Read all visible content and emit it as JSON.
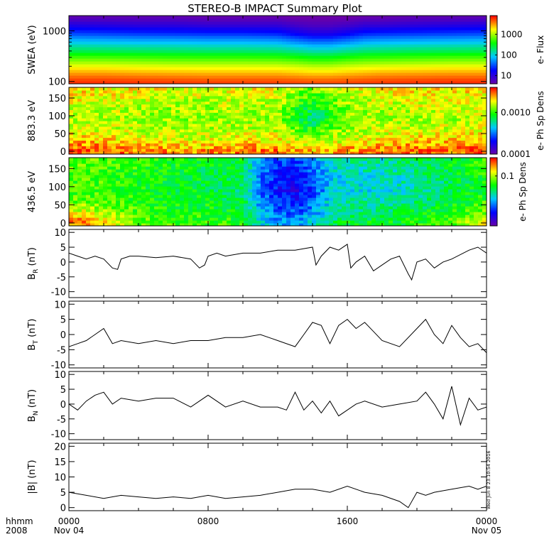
{
  "title": "STEREO-B IMPACT Summary Plot",
  "stamp": "Wed Jun  8 23:10:54 2016",
  "time_axis": {
    "label_line1": "hhmm",
    "label_line2": "2008",
    "ticks": [
      {
        "hour": 0,
        "line1": "0000",
        "line2": "Nov 04"
      },
      {
        "hour": 8,
        "line1": "0800",
        "line2": ""
      },
      {
        "hour": 16,
        "line1": "1600",
        "line2": ""
      },
      {
        "hour": 24,
        "line1": "0000",
        "line2": "Nov 05"
      }
    ]
  },
  "chart_data": [
    {
      "type": "heatmap",
      "ylabel": "SWEA (eV)",
      "yscale": "log",
      "ylim": [
        90,
        2000
      ],
      "yticks": [
        {
          "v": 100,
          "label": "100"
        },
        {
          "v": 1000,
          "label": "1000"
        }
      ],
      "colorbar": {
        "label": "e- Flux",
        "scale": "log",
        "range": [
          4,
          8000
        ],
        "ticks": [
          {
            "v": 10,
            "label": "10"
          },
          {
            "v": 100,
            "label": "100"
          },
          {
            "v": 1000,
            "label": "1000"
          }
        ]
      },
      "colorscale": [
        "#6a00a8",
        "#0000ff",
        "#00c8ff",
        "#00ff00",
        "#ffff00",
        "#ff0000"
      ],
      "x_hours": [
        0,
        2,
        4,
        6,
        8,
        10,
        12,
        13,
        14,
        15,
        16,
        17,
        18,
        20,
        22,
        24
      ],
      "y_levels": [
        100,
        150,
        250,
        400,
        600,
        900,
        1300,
        1800
      ],
      "z": [
        [
          6000,
          6000,
          5800,
          5600,
          5400,
          5400,
          5400,
          5200,
          5000,
          5000,
          5200,
          5400,
          5600,
          5800,
          6000,
          6000
        ],
        [
          3000,
          3000,
          2800,
          2700,
          2600,
          2600,
          2600,
          2400,
          2200,
          2200,
          2400,
          2600,
          2800,
          2900,
          3000,
          3000
        ],
        [
          900,
          900,
          850,
          800,
          800,
          800,
          780,
          700,
          600,
          600,
          700,
          780,
          800,
          850,
          900,
          900
        ],
        [
          250,
          240,
          230,
          220,
          210,
          210,
          200,
          170,
          140,
          140,
          170,
          200,
          210,
          230,
          240,
          250
        ],
        [
          90,
          85,
          80,
          80,
          75,
          75,
          70,
          55,
          45,
          45,
          55,
          70,
          75,
          80,
          85,
          90
        ],
        [
          30,
          28,
          26,
          25,
          24,
          24,
          22,
          16,
          12,
          12,
          16,
          22,
          24,
          26,
          28,
          30
        ],
        [
          12,
          11,
          10,
          10,
          9,
          9,
          9,
          7,
          6,
          6,
          7,
          9,
          9,
          10,
          11,
          12
        ],
        [
          5,
          5,
          5,
          5,
          4.5,
          4.5,
          4.5,
          4,
          4,
          4,
          4,
          4.5,
          4.5,
          5,
          5,
          5
        ]
      ]
    },
    {
      "type": "heatmap",
      "ylabel": "883.3 eV",
      "yscale": "linear",
      "ylim": [
        -8,
        180
      ],
      "yticks": [
        {
          "v": 0,
          "label": "0"
        },
        {
          "v": 50,
          "label": "50"
        },
        {
          "v": 100,
          "label": "100"
        },
        {
          "v": 150,
          "label": "150"
        }
      ],
      "colorbar": {
        "label": "e- Ph Sp Dens",
        "scale": "log",
        "range": [
          0.0001,
          0.004
        ],
        "ticks": [
          {
            "v": 0.0001,
            "label": "0.0001"
          },
          {
            "v": 0.001,
            "label": "0.0010"
          }
        ]
      },
      "colorscale": [
        "#6a00a8",
        "#0000ff",
        "#00c8ff",
        "#00ff00",
        "#ffff00",
        "#ff0000"
      ],
      "x_hours": [
        0,
        2,
        4,
        6,
        8,
        10,
        12,
        13,
        14,
        15,
        16,
        18,
        20,
        22,
        24
      ],
      "y_levels": [
        5,
        30,
        60,
        90,
        120,
        150,
        175
      ],
      "z": [
        [
          0.0032,
          0.003,
          0.0028,
          0.0026,
          0.0026,
          0.0028,
          0.0028,
          0.0024,
          0.0022,
          0.0024,
          0.0026,
          0.0028,
          0.003,
          0.003,
          0.0032
        ],
        [
          0.0024,
          0.0022,
          0.002,
          0.0018,
          0.0018,
          0.002,
          0.002,
          0.0016,
          0.0014,
          0.0016,
          0.0018,
          0.002,
          0.0022,
          0.0022,
          0.0024
        ],
        [
          0.0018,
          0.0017,
          0.0016,
          0.0015,
          0.0015,
          0.0016,
          0.0016,
          0.0012,
          0.001,
          0.0012,
          0.0015,
          0.0016,
          0.0017,
          0.0017,
          0.0018
        ],
        [
          0.0016,
          0.0015,
          0.0015,
          0.0014,
          0.0014,
          0.0015,
          0.0014,
          0.0009,
          0.0006,
          0.0009,
          0.0013,
          0.0015,
          0.0015,
          0.0015,
          0.0016
        ],
        [
          0.0017,
          0.0016,
          0.0015,
          0.0014,
          0.0014,
          0.0015,
          0.0014,
          0.001,
          0.0008,
          0.001,
          0.0013,
          0.0015,
          0.0016,
          0.0016,
          0.0017
        ],
        [
          0.0019,
          0.0018,
          0.0017,
          0.0016,
          0.0016,
          0.0017,
          0.0016,
          0.0012,
          0.001,
          0.0012,
          0.0015,
          0.0017,
          0.0018,
          0.0018,
          0.0019
        ],
        [
          0.0021,
          0.002,
          0.0019,
          0.0018,
          0.0018,
          0.0019,
          0.0018,
          0.0014,
          0.0012,
          0.0014,
          0.0017,
          0.0019,
          0.002,
          0.002,
          0.0021
        ]
      ]
    },
    {
      "type": "heatmap",
      "ylabel": "436.5 eV",
      "yscale": "linear",
      "ylim": [
        -8,
        180
      ],
      "yticks": [
        {
          "v": 0,
          "label": "0"
        },
        {
          "v": 50,
          "label": "50"
        },
        {
          "v": 100,
          "label": "100"
        },
        {
          "v": 150,
          "label": "150"
        }
      ],
      "colorbar": {
        "label": "e- Ph Sp Dens",
        "scale": "log",
        "range": [
          0.005,
          0.3
        ],
        "ticks": [
          {
            "v": 0.1,
            "label": "0.1"
          }
        ]
      },
      "colorscale": [
        "#6a00a8",
        "#0000ff",
        "#00c8ff",
        "#00ff00",
        "#ffff00",
        "#ff0000"
      ],
      "x_hours": [
        0,
        1,
        2,
        4,
        6,
        8,
        10,
        11,
        12,
        13,
        14,
        15,
        16,
        18,
        20,
        22,
        23,
        24
      ],
      "y_levels": [
        5,
        30,
        60,
        90,
        120,
        150,
        175
      ],
      "z": [
        [
          0.2,
          0.22,
          0.15,
          0.08,
          0.07,
          0.07,
          0.06,
          0.03,
          0.02,
          0.02,
          0.03,
          0.04,
          0.05,
          0.05,
          0.06,
          0.07,
          0.1,
          0.15
        ],
        [
          0.12,
          0.12,
          0.1,
          0.07,
          0.06,
          0.06,
          0.05,
          0.025,
          0.017,
          0.016,
          0.02,
          0.03,
          0.04,
          0.04,
          0.05,
          0.06,
          0.07,
          0.09
        ],
        [
          0.08,
          0.08,
          0.075,
          0.065,
          0.055,
          0.055,
          0.045,
          0.02,
          0.014,
          0.012,
          0.018,
          0.03,
          0.035,
          0.035,
          0.04,
          0.05,
          0.06,
          0.07
        ],
        [
          0.07,
          0.07,
          0.07,
          0.06,
          0.05,
          0.05,
          0.04,
          0.018,
          0.012,
          0.009,
          0.015,
          0.025,
          0.03,
          0.03,
          0.035,
          0.045,
          0.05,
          0.06
        ],
        [
          0.07,
          0.07,
          0.07,
          0.06,
          0.05,
          0.05,
          0.04,
          0.018,
          0.012,
          0.01,
          0.016,
          0.025,
          0.03,
          0.03,
          0.035,
          0.045,
          0.05,
          0.06
        ],
        [
          0.075,
          0.075,
          0.07,
          0.065,
          0.055,
          0.05,
          0.045,
          0.02,
          0.014,
          0.012,
          0.018,
          0.028,
          0.033,
          0.033,
          0.04,
          0.05,
          0.055,
          0.065
        ],
        [
          0.08,
          0.08,
          0.075,
          0.07,
          0.06,
          0.055,
          0.05,
          0.022,
          0.016,
          0.014,
          0.02,
          0.03,
          0.035,
          0.035,
          0.045,
          0.055,
          0.06,
          0.07
        ]
      ]
    },
    {
      "type": "line",
      "ylabel_main": "B",
      "ylabel_sub": "R",
      "ylabel_unit": "(nT)",
      "ylim": [
        -12,
        11
      ],
      "yticks": [
        {
          "v": -10,
          "label": "-10"
        },
        {
          "v": -5,
          "label": "-5"
        },
        {
          "v": 0,
          "label": "0"
        },
        {
          "v": 5,
          "label": "5"
        },
        {
          "v": 10,
          "label": "10"
        }
      ],
      "x": [
        0,
        0.5,
        1,
        1.5,
        2,
        2.5,
        2.8,
        3,
        3.5,
        4,
        5,
        6,
        7,
        7.5,
        7.8,
        8,
        8.5,
        9,
        10,
        11,
        12,
        13,
        14,
        14.2,
        14.5,
        15,
        15.5,
        16,
        16.2,
        16.5,
        17,
        17.5,
        18,
        18.5,
        19,
        19.5,
        19.7,
        20,
        20.5,
        21,
        21.5,
        22,
        23,
        23.5,
        24
      ],
      "y": [
        3,
        2,
        1,
        2,
        1,
        -2,
        -2.5,
        1,
        2,
        2,
        1.5,
        2,
        1,
        -2,
        -1,
        2,
        3,
        2,
        3,
        3,
        4,
        4,
        5,
        -1,
        2,
        5,
        4,
        6,
        -2,
        0,
        2,
        -3,
        -1,
        1,
        2,
        -4,
        -6,
        0,
        1,
        -2,
        0,
        1,
        4,
        5,
        3
      ]
    },
    {
      "type": "line",
      "ylabel_main": "B",
      "ylabel_sub": "T",
      "ylabel_unit": "(nT)",
      "ylim": [
        -11,
        11
      ],
      "yticks": [
        {
          "v": -10,
          "label": "-10"
        },
        {
          "v": -5,
          "label": "-5"
        },
        {
          "v": 0,
          "label": "0"
        },
        {
          "v": 5,
          "label": "5"
        },
        {
          "v": 10,
          "label": "10"
        }
      ],
      "x": [
        0,
        0.5,
        1,
        1.5,
        2,
        2.5,
        3,
        4,
        5,
        6,
        7,
        8,
        9,
        10,
        11,
        12,
        13,
        13.5,
        14,
        14.5,
        15,
        15.5,
        16,
        16.5,
        17,
        17.5,
        18,
        19,
        20,
        20.5,
        21,
        21.5,
        22,
        22.5,
        23,
        23.5,
        24
      ],
      "y": [
        -4,
        -3,
        -2,
        0,
        2,
        -3,
        -2,
        -3,
        -2,
        -3,
        -2,
        -2,
        -1,
        -1,
        0,
        -2,
        -4,
        0,
        4,
        3,
        -3,
        3,
        5,
        2,
        4,
        1,
        -2,
        -4,
        2,
        5,
        0,
        -3,
        3,
        -1,
        -4,
        -3,
        -6
      ]
    },
    {
      "type": "line",
      "ylabel_main": "B",
      "ylabel_sub": "N",
      "ylabel_unit": "(nT)",
      "ylim": [
        -12,
        11
      ],
      "yticks": [
        {
          "v": -10,
          "label": "-10"
        },
        {
          "v": -5,
          "label": "-5"
        },
        {
          "v": 0,
          "label": "0"
        },
        {
          "v": 5,
          "label": "5"
        },
        {
          "v": 10,
          "label": "10"
        }
      ],
      "x": [
        0,
        0.5,
        1,
        1.5,
        2,
        2.5,
        3,
        4,
        5,
        6,
        7,
        8,
        9,
        10,
        11,
        12,
        12.5,
        13,
        13.5,
        14,
        14.5,
        15,
        15.5,
        16,
        16.5,
        17,
        18,
        19,
        20,
        20.5,
        21,
        21.5,
        22,
        22.5,
        23,
        23.5,
        24
      ],
      "y": [
        0,
        -2,
        1,
        3,
        4,
        0,
        2,
        1,
        2,
        2,
        -1,
        3,
        -1,
        1,
        -1,
        -1,
        -2,
        4,
        -2,
        1,
        -3,
        1,
        -4,
        -2,
        0,
        1,
        -1,
        0,
        1,
        4,
        0,
        -5,
        6,
        -7,
        2,
        -2,
        -1
      ]
    },
    {
      "type": "line",
      "ylabel_main": "|B|",
      "ylabel_sub": "",
      "ylabel_unit": "(nT)",
      "ylim": [
        -1,
        21
      ],
      "yticks": [
        {
          "v": 0,
          "label": "0"
        },
        {
          "v": 5,
          "label": "5"
        },
        {
          "v": 10,
          "label": "10"
        },
        {
          "v": 15,
          "label": "15"
        },
        {
          "v": 20,
          "label": "20"
        }
      ],
      "x": [
        0,
        1,
        2,
        3,
        4,
        5,
        6,
        7,
        8,
        9,
        10,
        11,
        12,
        13,
        14,
        15,
        16,
        17,
        18,
        19,
        19.5,
        20,
        20.5,
        21,
        22,
        23,
        23.5,
        24
      ],
      "y": [
        5,
        4,
        3,
        4,
        3.5,
        3,
        3.5,
        3,
        4,
        3,
        3.5,
        4,
        5,
        6,
        6,
        5,
        7,
        5,
        4,
        2,
        0,
        5,
        4,
        5,
        6,
        7,
        6,
        7
      ]
    }
  ]
}
